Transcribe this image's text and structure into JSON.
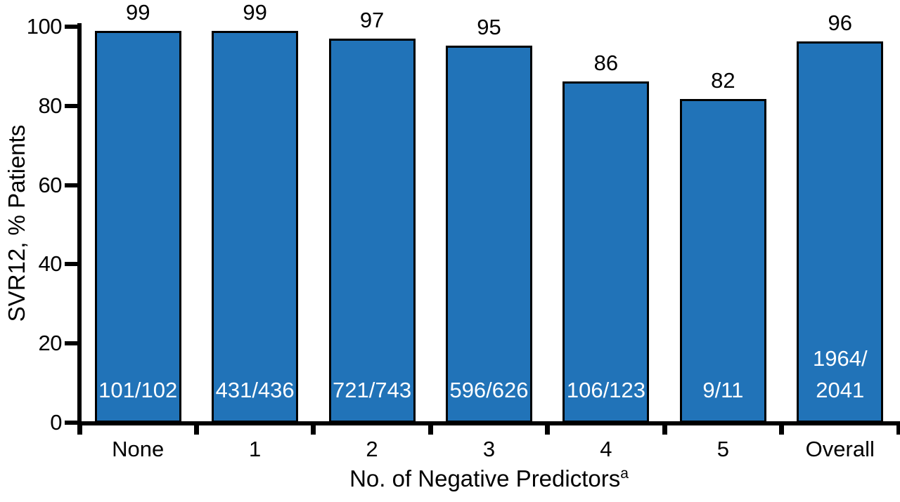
{
  "chart_data": {
    "type": "bar",
    "title": "",
    "xlabel": "No. of Negative Predictors",
    "xlabel_superscript": "a",
    "ylabel": "SVR12, % Patients",
    "ylim": [
      0,
      100
    ],
    "yticks": [
      0,
      20,
      40,
      60,
      80,
      100
    ],
    "grid": false,
    "legend_position": "none",
    "bar_color": "#2173B8",
    "bar_border_color": "#000000",
    "axis_color": "#000000",
    "in_bar_text_color": "#ffffff",
    "categories": [
      "None",
      "1",
      "2",
      "3",
      "4",
      "5",
      "Overall"
    ],
    "values": [
      99.0,
      98.9,
      97.0,
      95.2,
      86.2,
      81.8,
      96.2
    ],
    "value_labels": [
      "99",
      "99",
      "97",
      "95",
      "86",
      "82",
      "96"
    ],
    "fraction_labels": [
      "101/102",
      "431/436",
      "721/743",
      "596/626",
      "106/123",
      "9/11",
      "1964/\n2041"
    ]
  }
}
